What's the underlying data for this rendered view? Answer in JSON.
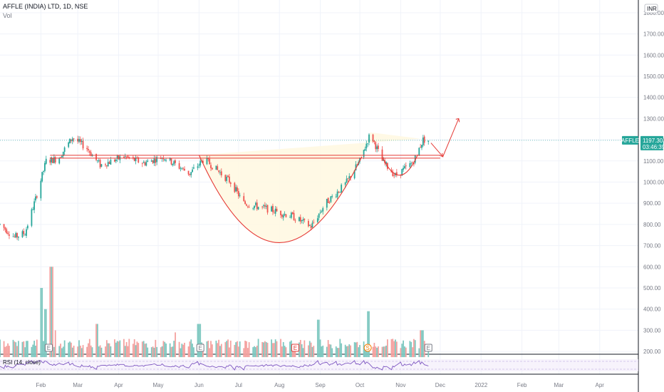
{
  "header": {
    "title": "AFFLE (INDIA) LTD, 1D, NSE",
    "volume_label": "Vol",
    "currency": "INR"
  },
  "price_tag": {
    "symbol": "AFFLE",
    "price": "1197.30",
    "countdown": "03:46:39"
  },
  "rsi_label": "RSI (14, close)",
  "colors": {
    "up": "#26a69a",
    "down": "#ef5350",
    "pattern": "#e53935",
    "pattern_fill": "#fff8e1",
    "rsi": "#7e57c2",
    "price_line": "#26a69a"
  },
  "chart_data": {
    "type": "candlestick",
    "symbol": "AFFLE (INDIA) LTD",
    "interval": "1D",
    "exchange": "NSE",
    "price_axis_ticks": [
      1800,
      1700,
      1600,
      1500,
      1400,
      1300,
      1200,
      1100,
      1000,
      900,
      800,
      700,
      600,
      500,
      400,
      300,
      200
    ],
    "price_axis_labels": [
      "1800.00",
      "1700.00",
      "1600.00",
      "1500.00",
      "1400.00",
      "1300.00",
      "1200.00",
      "1100.00",
      "1000.00",
      "900.00",
      "800.00",
      "700.00",
      "600.00",
      "500.00",
      "400.00",
      "300.00",
      "200.00"
    ],
    "ylim": [
      170,
      1840
    ],
    "time_axis_labels": [
      "Feb",
      "Mar",
      "Apr",
      "May",
      "Jun",
      "Jul",
      "Aug",
      "Sep",
      "Oct",
      "Nov",
      "Dec",
      "2022",
      "Feb",
      "Mar",
      "Apr"
    ],
    "resistance_level": 1120,
    "last_price": 1197.3,
    "price_waypoints": [
      {
        "date": "2021-01-01",
        "price": 800
      },
      {
        "date": "2021-01-12",
        "price": 740
      },
      {
        "date": "2021-01-20",
        "price": 760
      },
      {
        "date": "2021-01-28",
        "price": 920
      },
      {
        "date": "2021-02-05",
        "price": 1100
      },
      {
        "date": "2021-02-14",
        "price": 1110
      },
      {
        "date": "2021-02-25",
        "price": 1210
      },
      {
        "date": "2021-03-08",
        "price": 1160
      },
      {
        "date": "2021-03-18",
        "price": 1080
      },
      {
        "date": "2021-04-05",
        "price": 1120
      },
      {
        "date": "2021-04-20",
        "price": 1090
      },
      {
        "date": "2021-05-05",
        "price": 1120
      },
      {
        "date": "2021-05-25",
        "price": 1040
      },
      {
        "date": "2021-06-05",
        "price": 1110
      },
      {
        "date": "2021-06-25",
        "price": 1000
      },
      {
        "date": "2021-07-05",
        "price": 900
      },
      {
        "date": "2021-07-25",
        "price": 870
      },
      {
        "date": "2021-08-10",
        "price": 840
      },
      {
        "date": "2021-08-25",
        "price": 790
      },
      {
        "date": "2021-09-05",
        "price": 900
      },
      {
        "date": "2021-09-20",
        "price": 990
      },
      {
        "date": "2021-10-01",
        "price": 1100
      },
      {
        "date": "2021-10-09",
        "price": 1230
      },
      {
        "date": "2021-10-18",
        "price": 1100
      },
      {
        "date": "2021-10-28",
        "price": 1030
      },
      {
        "date": "2021-11-10",
        "price": 1090
      },
      {
        "date": "2021-11-18",
        "price": 1200
      },
      {
        "date": "2021-11-22",
        "price": 1197
      }
    ],
    "volume_spikes": [
      {
        "date": "2021-02-01",
        "volume": 500
      },
      {
        "date": "2021-02-05",
        "volume": 400
      },
      {
        "date": "2021-02-09",
        "volume": 600
      },
      {
        "date": "2021-02-13",
        "volume": 300
      },
      {
        "date": "2021-03-15",
        "volume": 330
      },
      {
        "date": "2021-05-15",
        "volume": 290
      },
      {
        "date": "2021-06-01",
        "volume": 330
      },
      {
        "date": "2021-08-30",
        "volume": 350
      },
      {
        "date": "2021-10-08",
        "volume": 390
      },
      {
        "date": "2021-11-17",
        "volume": 300
      }
    ],
    "event_markers": [
      {
        "date": "2021-02-07",
        "label": "E",
        "kind": "earnings"
      },
      {
        "date": "2021-06-02",
        "label": "E",
        "kind": "earnings"
      },
      {
        "date": "2021-08-13",
        "label": "E",
        "kind": "earnings"
      },
      {
        "date": "2021-10-07",
        "label": "S",
        "kind": "split"
      },
      {
        "date": "2021-11-22",
        "label": "E",
        "kind": "earnings"
      }
    ],
    "pattern": "cup and handle"
  }
}
